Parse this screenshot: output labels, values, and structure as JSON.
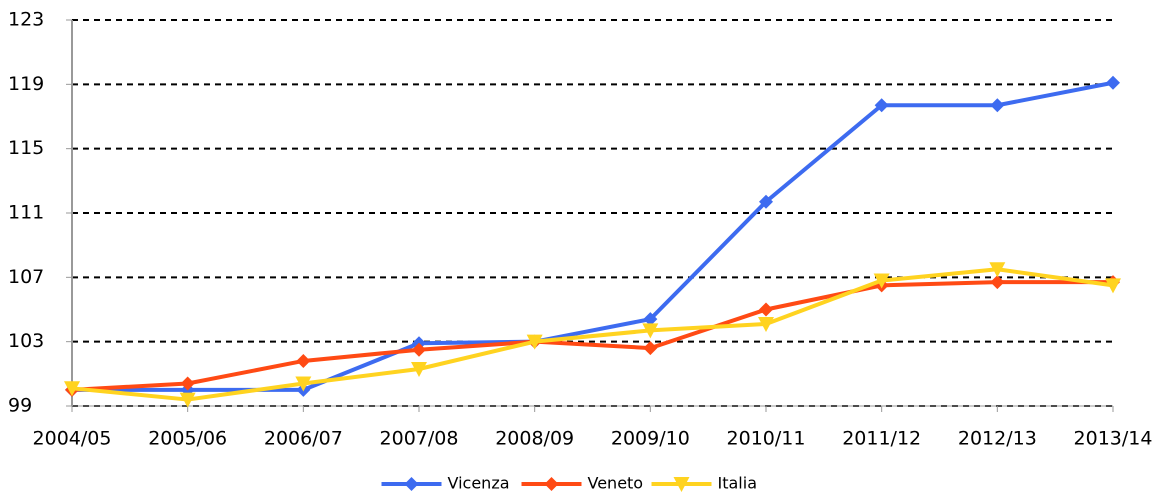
{
  "chart_data": {
    "type": "line",
    "categories": [
      "2004/05",
      "2005/06",
      "2006/07",
      "2007/08",
      "2008/09",
      "2009/10",
      "2010/11",
      "2011/12",
      "2012/13",
      "2013/14"
    ],
    "series": [
      {
        "name": "Vicenza",
        "color": "#3d6bf0",
        "marker": "diamond",
        "values": [
          100.0,
          100.0,
          100.0,
          102.9,
          103.0,
          104.4,
          111.7,
          117.7,
          117.7,
          119.1
        ]
      },
      {
        "name": "Veneto",
        "color": "#ff4a14",
        "marker": "diamond",
        "values": [
          100.0,
          100.4,
          101.8,
          102.5,
          103.0,
          102.6,
          105.0,
          106.5,
          106.7,
          106.7
        ]
      },
      {
        "name": "Italia",
        "color": "#ffd320",
        "marker": "triangle-down",
        "values": [
          100.1,
          99.4,
          100.4,
          101.3,
          103.0,
          103.7,
          104.1,
          106.8,
          107.5,
          106.5
        ]
      }
    ],
    "ylim": [
      99,
      123
    ],
    "yticks": [
      99,
      103,
      107,
      111,
      115,
      119,
      123
    ],
    "grid": true,
    "legend": "bottom"
  }
}
